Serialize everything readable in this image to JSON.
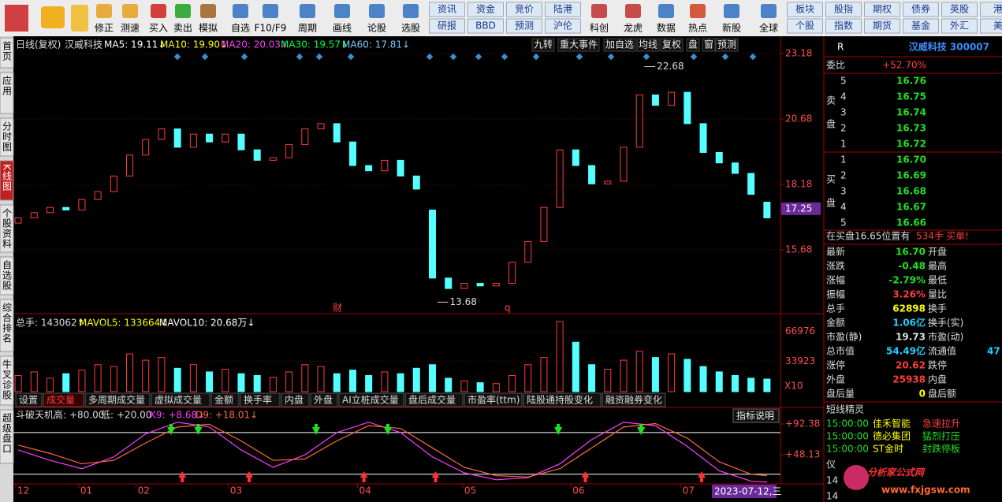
{
  "toolbar": {
    "icon_buttons": [
      "修正",
      "测速",
      "买入",
      "卖出",
      "模拟",
      "自选",
      "F10/F9",
      "周期",
      "画线",
      "论股",
      "选股",
      "科创",
      "龙虎",
      "数据",
      "热点",
      "新股",
      "全球"
    ],
    "grid_a": [
      [
        "资讯",
        "资金",
        "竞价",
        "陆港"
      ],
      [
        "研报",
        "BBD",
        "预测",
        "沪伦"
      ]
    ],
    "grid_b": [
      [
        "板块",
        "股指",
        "期权",
        "债券",
        "英股",
        "港"
      ],
      [
        "个股",
        "指数",
        "期货",
        "基金",
        "外汇",
        "美"
      ]
    ]
  },
  "side_tabs": [
    "首页",
    "应用",
    "分时图",
    "K线图",
    "个股资料",
    "自选股",
    "综合排名",
    "牛叉诊股",
    "超级盘口"
  ],
  "chart_header": {
    "period": "日线(复权)",
    "name": "汉威科技",
    "ma": [
      "MA5: 19.11↓",
      "MA10: 19.90↓",
      "MA20: 20.03↓",
      "MA30: 19.57↓",
      "MA60: 17.81↓"
    ],
    "marks": [
      "财",
      "q"
    ]
  },
  "chart_buttons": [
    "九转",
    "重大事件",
    "加自选",
    "均线",
    "复权",
    "盘",
    "窗",
    "预测"
  ],
  "volume_header": [
    "总手: 143062↑",
    "MAVOL5: 133664↓",
    "MAVOL10: 20.68万↓"
  ],
  "volume_scale_note": "X10",
  "indicator_tabs": [
    "设置",
    "成交量",
    "多周期成交量",
    "虚拟成交量",
    "金额",
    "换手率",
    "内盘",
    "外盘",
    "AI立桩成交量",
    "盘后成交量",
    "市盈率(ttm)",
    "陆股通持股变化",
    "融资融券变化"
  ],
  "date_label": "2023-07-12,三",
  "chart_data": [
    {
      "type": "candlestick",
      "up_color": "#ff3c3c",
      "down_color": "#54ffff",
      "open": [
        16.7,
        16.9,
        17.1,
        17.3,
        17.2,
        17.6,
        17.9,
        18.5,
        19.3,
        19.9,
        20.3,
        19.6,
        20.1,
        19.8,
        20.1,
        19.5,
        19.1,
        19.2,
        19.7,
        20.3,
        20.5,
        19.8,
        18.9,
        18.7,
        19.1,
        18.5,
        17.2,
        14.6,
        14.2,
        14.4,
        14.3,
        14.4,
        15.2,
        16.0,
        17.3,
        19.5,
        18.9,
        18.2,
        18.3,
        19.6,
        21.6,
        21.2,
        21.7,
        20.5,
        19.4,
        19.0,
        18.6,
        17.5
      ],
      "close": [
        16.9,
        17.1,
        17.3,
        17.2,
        17.6,
        17.9,
        18.5,
        19.3,
        19.9,
        20.3,
        19.6,
        20.1,
        19.8,
        20.1,
        19.5,
        19.1,
        19.2,
        19.7,
        20.3,
        20.5,
        19.8,
        18.9,
        18.7,
        19.1,
        18.5,
        18.0,
        14.6,
        14.2,
        14.4,
        14.3,
        14.4,
        15.2,
        16.0,
        17.3,
        19.5,
        18.9,
        18.2,
        18.3,
        19.6,
        21.6,
        21.2,
        21.7,
        20.5,
        19.4,
        19.0,
        18.6,
        17.8,
        16.9
      ],
      "xlim": [
        -0.3,
        47.6
      ],
      "ylim": [
        13.24,
        23.81
      ],
      "yticks": [
        23.18,
        20.68,
        18.18,
        15.68
      ],
      "xticks": [
        {
          "value": -0.15,
          "label": "12"
        },
        {
          "value": 3.8,
          "label": "01"
        },
        {
          "value": 7.4,
          "label": "02"
        },
        {
          "value": 13.2,
          "label": "03"
        },
        {
          "value": 21.3,
          "label": "04"
        },
        {
          "value": 27.9,
          "label": "05"
        },
        {
          "value": 34.7,
          "label": "06"
        },
        {
          "value": 41.6,
          "label": "07"
        }
      ],
      "extremes": [
        {
          "x": 39.3,
          "value": 22.68
        },
        {
          "x": 26.3,
          "value": 13.68
        }
      ],
      "current_price": 17.25,
      "grid": true
    },
    {
      "type": "bar",
      "values": [
        18000,
        22000,
        15000,
        20000,
        24000,
        30000,
        28000,
        42000,
        35000,
        38000,
        26000,
        30000,
        22000,
        25000,
        20000,
        18000,
        16000,
        22000,
        30000,
        28000,
        20000,
        24000,
        18000,
        22000,
        20000,
        26000,
        30000,
        15000,
        12000,
        10000,
        9000,
        18000,
        30000,
        38000,
        78000,
        55000,
        30000,
        25000,
        35000,
        45000,
        38000,
        42000,
        36000,
        28000,
        22000,
        18000,
        15000,
        14000
      ],
      "xlim": [
        -0.3,
        47.6
      ],
      "ylim": [
        0,
        85000
      ],
      "yticks": [
        66976,
        33923
      ],
      "grid": true
    },
    {
      "type": "line",
      "name": "斗破天机",
      "levels": [
        {
          "value": 80,
          "label": "+80.00"
        },
        {
          "value": 20,
          "label": "+20.00"
        }
      ],
      "level_names": [
        "高:",
        "低:"
      ],
      "x": [
        0,
        2,
        4,
        6,
        8,
        10,
        12,
        14,
        16,
        18,
        20,
        22,
        24,
        26,
        28,
        30,
        32,
        34,
        36,
        38,
        40,
        42,
        44,
        46,
        47
      ],
      "series": [
        {
          "name": "K9: +8.68↓",
          "color": "#ff3cff",
          "values": [
            55,
            40,
            28,
            45,
            78,
            95,
            88,
            55,
            30,
            48,
            80,
            95,
            80,
            45,
            22,
            12,
            15,
            35,
            70,
            95,
            90,
            60,
            25,
            10,
            8.68
          ]
        },
        {
          "name": "D9: +18.01↓",
          "color": "#ff6a3c",
          "values": [
            62,
            50,
            35,
            40,
            65,
            88,
            92,
            68,
            40,
            42,
            68,
            90,
            86,
            58,
            30,
            18,
            16,
            28,
            58,
            88,
            93,
            72,
            38,
            20,
            18.01
          ]
        }
      ],
      "sell_signals": [
        9.6,
        11.3,
        18.7,
        23.2,
        33.9,
        39.1
      ],
      "buy_signals": [
        10.3,
        14.5,
        21.7,
        26.2,
        35.6,
        42.9
      ],
      "xlim": [
        -0.3,
        47.6
      ],
      "ylim": [
        8.4,
        101.5
      ],
      "yticks": [
        {
          "value": 92.38,
          "label": "+92.38"
        },
        {
          "value": 48.13,
          "label": "+48.13"
        }
      ],
      "button": "指标说明"
    }
  ],
  "quote_panel": {
    "code_tag": "R",
    "stock": "汉威科技 300007",
    "weibi_label": "委比",
    "weibi": "+52.70%",
    "sell_side": [
      "卖",
      "盘"
    ],
    "buy_side": [
      "买",
      "盘"
    ],
    "sell": [
      [
        "5",
        "16.76"
      ],
      [
        "4",
        "16.75"
      ],
      [
        "3",
        "16.74"
      ],
      [
        "2",
        "16.73"
      ],
      [
        "1",
        "16.72"
      ]
    ],
    "buy": [
      [
        "1",
        "16.70"
      ],
      [
        "2",
        "16.69"
      ],
      [
        "3",
        "16.68"
      ],
      [
        "4",
        "16.67"
      ],
      [
        "5",
        "16.66"
      ]
    ],
    "order_note": [
      "在买盘16.65位置有",
      "534手",
      "买单!"
    ],
    "rows": [
      [
        "最新",
        "16.70",
        "开盘"
      ],
      [
        "涨跌",
        "-0.48",
        "最高"
      ],
      [
        "涨幅",
        "-2.79%",
        "最低"
      ],
      [
        "振幅",
        "3.26%",
        "量比"
      ],
      [
        "总手",
        "62898",
        "换手"
      ],
      [
        "金额",
        "1.06亿",
        "换手(实)"
      ],
      [
        "市盈(静)",
        "19.73",
        "市盈(动)"
      ],
      [
        "总市值",
        "54.49亿",
        "流通值"
      ],
      [
        "涨停",
        "20.62",
        "跌停"
      ],
      [
        "外盘",
        "25938",
        "内盘"
      ],
      [
        "盘后量",
        "0",
        "盘后额"
      ]
    ],
    "row_extra": "47",
    "alerts_title": "短线精灵",
    "alerts": [
      [
        "15:00:00",
        "佳禾智能",
        "急速拉升"
      ],
      [
        "15:00:00",
        "德必集团",
        "猛烈打压"
      ],
      [
        "15:00:00",
        "ST金时",
        "封跌停板"
      ]
    ],
    "footer": [
      "仪",
      "14",
      "14"
    ]
  },
  "watermark": [
    "分析家公式网",
    "www.fxjgsw.com"
  ]
}
